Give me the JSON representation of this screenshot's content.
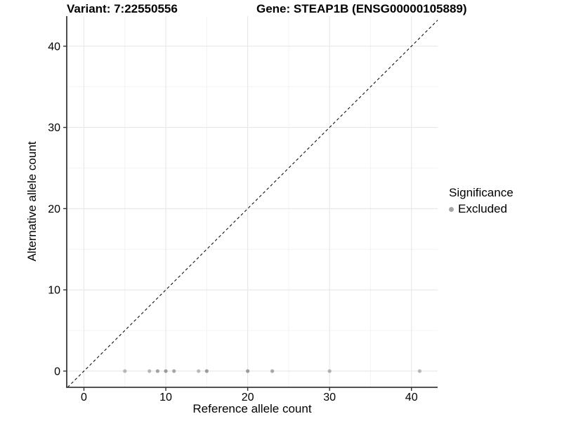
{
  "chart_data": {
    "type": "scatter",
    "titles": {
      "left": "Variant: 7:22550556",
      "right": "Gene: STEAP1B (ENSG00000105889)"
    },
    "xlabel": "Reference allele count",
    "ylabel": "Alternative allele count",
    "xlim": [
      -2.1,
      43.2
    ],
    "ylim": [
      -2.0,
      43.7
    ],
    "x_major_ticks": [
      0,
      10,
      20,
      30,
      40
    ],
    "y_major_ticks": [
      0,
      10,
      20,
      30,
      40
    ],
    "x_minor_gridlines": [
      5,
      15,
      25,
      35
    ],
    "y_minor_gridlines": [
      5,
      15,
      25,
      35
    ],
    "grid": "major+minor",
    "reference_line": {
      "type": "identity y=x",
      "style": "dashed",
      "color": "#111111"
    },
    "legend": {
      "title": "Significance",
      "position": "right",
      "items": [
        {
          "label": "Excluded",
          "color": "#a6a6a6"
        }
      ]
    },
    "series": [
      {
        "name": "Excluded",
        "color": "#a6a6a6",
        "points": [
          {
            "x": 5,
            "y": 0,
            "shade": "#b7b7b7"
          },
          {
            "x": 8,
            "y": 0,
            "shade": "#b7b7b7"
          },
          {
            "x": 9,
            "y": 0,
            "shade": "#a3a3a3"
          },
          {
            "x": 10,
            "y": 0,
            "shade": "#9c9c9c"
          },
          {
            "x": 11,
            "y": 0,
            "shade": "#a6a6a6"
          },
          {
            "x": 14,
            "y": 0,
            "shade": "#bababa"
          },
          {
            "x": 15,
            "y": 0,
            "shade": "#9c9c9c"
          },
          {
            "x": 20,
            "y": 0,
            "shade": "#9c9c9c"
          },
          {
            "x": 23,
            "y": 0,
            "shade": "#a9a9a9"
          },
          {
            "x": 30,
            "y": 0,
            "shade": "#b0b0b0"
          },
          {
            "x": 41,
            "y": 0,
            "shade": "#b7b7b7"
          }
        ]
      }
    ],
    "colors": {
      "axis": "#3a3a3a",
      "tick": "#333333",
      "grid_major": "#e8e8e8",
      "grid_minor": "#f3f3f3",
      "text": "#000000",
      "background": "#ffffff"
    }
  }
}
